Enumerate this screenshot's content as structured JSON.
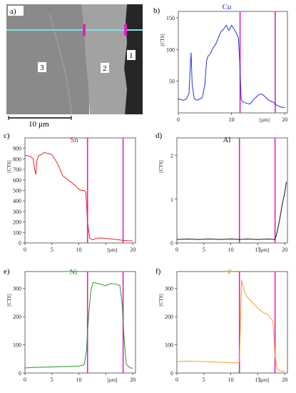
{
  "image": {
    "panel_label": "a)",
    "region_labels": [
      "3",
      "2",
      "1"
    ],
    "scale_bar_label": "10 µm"
  },
  "chart_data": [
    {
      "type": "line",
      "panel_label": "b)",
      "title": "Cu",
      "color": "#2233dd",
      "xlabel": "[µm]",
      "ylabel": "[CTS]",
      "xlim": [
        0,
        20.5
      ],
      "ylim": [
        0,
        160
      ],
      "xticks": [
        0,
        10,
        20
      ],
      "xtick_labels": [
        "0",
        "10",
        "20"
      ],
      "yticks": [
        50,
        100,
        150
      ],
      "boundaries": [
        11.6,
        18.2
      ],
      "x": [
        0,
        0.5,
        1,
        1.5,
        2,
        2.2,
        2.4,
        2.6,
        3,
        3.5,
        4,
        4.5,
        5,
        5.3,
        5.6,
        6,
        6.5,
        7,
        7.5,
        8,
        8.5,
        9,
        9.5,
        10,
        10.5,
        11,
        11.3,
        11.6,
        11.8,
        12,
        12.5,
        13,
        13.5,
        14,
        14.5,
        15,
        15.5,
        16,
        16.5,
        17,
        17.5,
        18,
        18.2,
        18.5,
        19,
        19.5,
        20
      ],
      "y": [
        22,
        21,
        20,
        22,
        30,
        65,
        95,
        45,
        22,
        20,
        22,
        24,
        45,
        82,
        90,
        93,
        102,
        108,
        118,
        128,
        132,
        138,
        130,
        138,
        132,
        124,
        118,
        68,
        22,
        18,
        16,
        15,
        14,
        20,
        24,
        28,
        30,
        28,
        24,
        20,
        18,
        16,
        14,
        12,
        10,
        9,
        8
      ]
    },
    {
      "type": "line",
      "panel_label": "c)",
      "title": "Sn",
      "color": "#ee2222",
      "xlabel": "[µm]",
      "ylabel": "[CTS]",
      "xlim": [
        0,
        20.5
      ],
      "ylim": [
        0,
        1000
      ],
      "xticks": [
        0,
        5,
        10,
        15,
        20
      ],
      "xtick_labels": [
        "0",
        "5",
        "10",
        "",
        "20"
      ],
      "yticks": [
        0,
        100,
        200,
        300,
        400,
        500,
        600,
        700,
        800,
        900
      ],
      "boundaries": [
        11.6,
        18.2
      ],
      "x": [
        0,
        0.5,
        1,
        1.5,
        1.8,
        2,
        2.2,
        2.5,
        3,
        3.5,
        4,
        4.5,
        5,
        5.5,
        6,
        6.5,
        7,
        7.5,
        8,
        8.5,
        9,
        9.5,
        10,
        10.5,
        11,
        11.3,
        11.6,
        12,
        12.5,
        13,
        14,
        15,
        16,
        17,
        18,
        19,
        20
      ],
      "y": [
        835,
        830,
        825,
        800,
        700,
        650,
        780,
        830,
        840,
        860,
        855,
        850,
        840,
        800,
        760,
        700,
        640,
        620,
        600,
        580,
        560,
        540,
        510,
        500,
        500,
        480,
        200,
        45,
        30,
        40,
        48,
        42,
        38,
        32,
        26,
        22,
        20
      ]
    },
    {
      "type": "line",
      "panel_label": "d)",
      "title": "Al",
      "color": "#111111",
      "xlabel": "[µm]",
      "ylabel": "[CTS]",
      "xlim": [
        0,
        20.5
      ],
      "ylim": [
        0,
        2.4
      ],
      "xticks": [
        0,
        5,
        10,
        15,
        20
      ],
      "xtick_labels": [
        "0",
        "5",
        "10",
        "15",
        "20"
      ],
      "yticks": [
        0,
        1,
        2
      ],
      "boundaries": [
        11.6,
        18.2
      ],
      "x": [
        0,
        2,
        4,
        6,
        8,
        10,
        11.6,
        13,
        15,
        17,
        18,
        18.2,
        18.6,
        19,
        19.5,
        20,
        20.3
      ],
      "y": [
        0.08,
        0.09,
        0.08,
        0.09,
        0.08,
        0.09,
        0.08,
        0.09,
        0.08,
        0.09,
        0.08,
        0.08,
        0.25,
        0.5,
        0.85,
        1.15,
        1.4
      ]
    },
    {
      "type": "line",
      "panel_label": "e)",
      "title": "Ni",
      "color": "#229922",
      "xlabel": "[µm]",
      "ylabel": "[CTS]",
      "xlim": [
        0,
        20.5
      ],
      "ylim": [
        0,
        360
      ],
      "xticks": [
        0,
        5,
        10,
        15,
        20
      ],
      "xtick_labels": [
        "0",
        "5",
        "10",
        "",
        "20"
      ],
      "yticks": [
        0,
        100,
        200,
        300
      ],
      "boundaries": [
        11.6,
        18.2
      ],
      "x": [
        0,
        2,
        4,
        6,
        8,
        10,
        11,
        11.4,
        11.8,
        12.2,
        12.6,
        13,
        14,
        15,
        16,
        17,
        17.6,
        18,
        18.4,
        18.8,
        19.5,
        20
      ],
      "y": [
        18,
        20,
        21,
        22,
        23,
        24,
        30,
        80,
        200,
        290,
        320,
        320,
        315,
        310,
        318,
        315,
        310,
        250,
        120,
        30,
        18,
        17
      ]
    },
    {
      "type": "line",
      "panel_label": "f)",
      "title": "P",
      "color": "#f5a020",
      "xlabel": "[µm]",
      "ylabel": "[CTS]",
      "xlim": [
        0,
        20.5
      ],
      "ylim": [
        0,
        360
      ],
      "xticks": [
        0,
        5,
        10,
        15,
        20
      ],
      "xtick_labels": [
        "0",
        "5",
        "10",
        "15",
        "20"
      ],
      "yticks": [
        0,
        100,
        200,
        300
      ],
      "boundaries": [
        11.6,
        18.2
      ],
      "x": [
        0,
        2,
        4,
        6,
        8,
        10,
        11,
        11.6,
        12,
        12.5,
        13,
        14,
        15,
        16,
        17,
        17.8,
        18.2,
        18.6,
        19,
        19.5,
        20
      ],
      "y": [
        40,
        42,
        41,
        40,
        38,
        36,
        35,
        40,
        330,
        290,
        270,
        250,
        230,
        215,
        205,
        185,
        60,
        15,
        8,
        6,
        6
      ]
    }
  ]
}
